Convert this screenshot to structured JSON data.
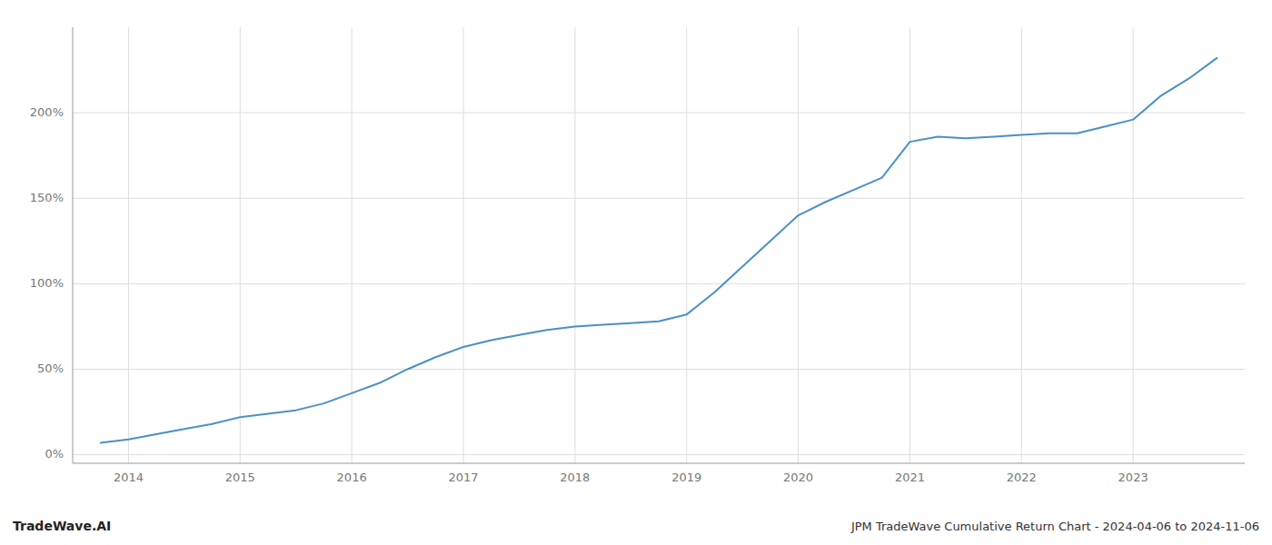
{
  "chart_data": {
    "type": "line",
    "title": "TradeWave.AI",
    "subtitle": "JPM TradeWave Cumulative Return Chart - 2024-04-06 to 2024-11-06",
    "x": [
      2013.75,
      2014.0,
      2014.25,
      2014.5,
      2014.75,
      2015.0,
      2015.25,
      2015.5,
      2015.75,
      2016.0,
      2016.25,
      2016.5,
      2016.75,
      2017.0,
      2017.25,
      2017.5,
      2017.75,
      2018.0,
      2018.25,
      2018.5,
      2018.75,
      2019.0,
      2019.25,
      2019.5,
      2019.75,
      2020.0,
      2020.25,
      2020.5,
      2020.75,
      2021.0,
      2021.25,
      2021.5,
      2021.75,
      2022.0,
      2022.25,
      2022.5,
      2022.75,
      2023.0,
      2023.25,
      2023.5,
      2023.75
    ],
    "values": [
      7,
      9,
      12,
      15,
      18,
      22,
      24,
      26,
      30,
      36,
      42,
      50,
      57,
      63,
      67,
      70,
      73,
      75,
      76,
      77,
      78,
      82,
      95,
      110,
      125,
      140,
      148,
      155,
      162,
      183,
      186,
      185,
      186,
      187,
      188,
      188,
      192,
      196,
      210,
      220,
      232
    ],
    "color": "#4a90c4",
    "xlim": [
      2013.5,
      2024.0
    ],
    "ylim": [
      -5,
      250
    ],
    "xticks": [
      2014,
      2015,
      2016,
      2017,
      2018,
      2019,
      2020,
      2021,
      2022,
      2023
    ],
    "yticks": [
      {
        "value": 0,
        "label": "0%"
      },
      {
        "value": 50,
        "label": "50%"
      },
      {
        "value": 100,
        "label": "100%"
      },
      {
        "value": 150,
        "label": "150%"
      },
      {
        "value": 200,
        "label": "200%"
      }
    ],
    "grid": true
  }
}
